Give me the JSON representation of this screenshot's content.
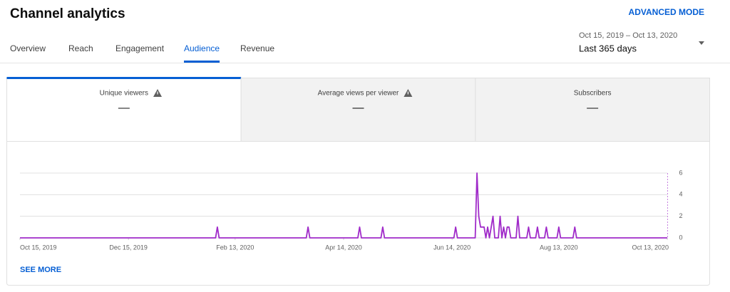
{
  "header": {
    "title": "Channel analytics",
    "advanced_mode": "ADVANCED MODE"
  },
  "tabs": {
    "items": [
      "Overview",
      "Reach",
      "Engagement",
      "Audience",
      "Revenue"
    ],
    "active": 3
  },
  "date_range": {
    "range": "Oct 15, 2019 – Oct 13, 2020",
    "label": "Last 365 days"
  },
  "cards": {
    "active": 0,
    "items": [
      {
        "label": "Unique viewers",
        "value": "—",
        "warning": true
      },
      {
        "label": "Average views per viewer",
        "value": "—",
        "warning": true
      },
      {
        "label": "Subscribers",
        "value": "—",
        "warning": false
      }
    ]
  },
  "chart_data": {
    "type": "line",
    "color": "#a02bc9",
    "grid": true,
    "x": [
      "2019-10-15",
      "2020-02-02",
      "2020-02-03",
      "2020-02-04",
      "2020-03-24",
      "2020-03-25",
      "2020-03-26",
      "2020-04-22",
      "2020-04-23",
      "2020-04-24",
      "2020-05-05",
      "2020-05-06",
      "2020-05-07",
      "2020-06-15",
      "2020-06-16",
      "2020-06-17",
      "2020-06-27",
      "2020-06-28",
      "2020-06-29",
      "2020-06-30",
      "2020-07-01",
      "2020-07-02",
      "2020-07-03",
      "2020-07-04",
      "2020-07-05",
      "2020-07-06",
      "2020-07-07",
      "2020-07-08",
      "2020-07-09",
      "2020-07-10",
      "2020-07-11",
      "2020-07-12",
      "2020-07-13",
      "2020-07-14",
      "2020-07-15",
      "2020-07-16",
      "2020-07-17",
      "2020-07-20",
      "2020-07-21",
      "2020-07-22",
      "2020-07-26",
      "2020-07-27",
      "2020-07-28",
      "2020-07-31",
      "2020-08-01",
      "2020-08-02",
      "2020-08-05",
      "2020-08-06",
      "2020-08-07",
      "2020-08-12",
      "2020-08-13",
      "2020-08-14",
      "2020-08-21",
      "2020-08-22",
      "2020-08-23",
      "2020-10-13"
    ],
    "values": [
      0,
      0,
      1,
      0,
      0,
      1,
      0,
      0,
      1,
      0,
      0,
      1,
      0,
      0,
      1,
      0,
      0,
      6,
      2,
      1,
      1,
      1,
      0,
      1,
      0,
      1,
      2,
      0,
      0,
      0,
      2,
      0,
      1,
      0,
      1,
      1,
      0,
      0,
      2,
      0,
      0,
      1,
      0,
      0,
      1,
      0,
      0,
      1,
      0,
      0,
      1,
      0,
      0,
      1,
      0,
      0
    ],
    "xlim": [
      "2019-10-15",
      "2020-10-13"
    ],
    "xticks": [
      {
        "value": "2019-10-15",
        "label": "Oct 15, 2019"
      },
      {
        "value": "2019-12-15",
        "label": "Dec 15, 2019"
      },
      {
        "value": "2020-02-13",
        "label": "Feb 13, 2020"
      },
      {
        "value": "2020-04-14",
        "label": "Apr 14, 2020"
      },
      {
        "value": "2020-06-14",
        "label": "Jun 14, 2020"
      },
      {
        "value": "2020-08-13",
        "label": "Aug 13, 2020"
      },
      {
        "value": "2020-10-13",
        "label": "Oct 13, 2020"
      }
    ],
    "ylim": [
      0,
      6
    ],
    "yticks": [
      0,
      2,
      4,
      6
    ]
  },
  "footer": {
    "see_more": "SEE MORE"
  }
}
